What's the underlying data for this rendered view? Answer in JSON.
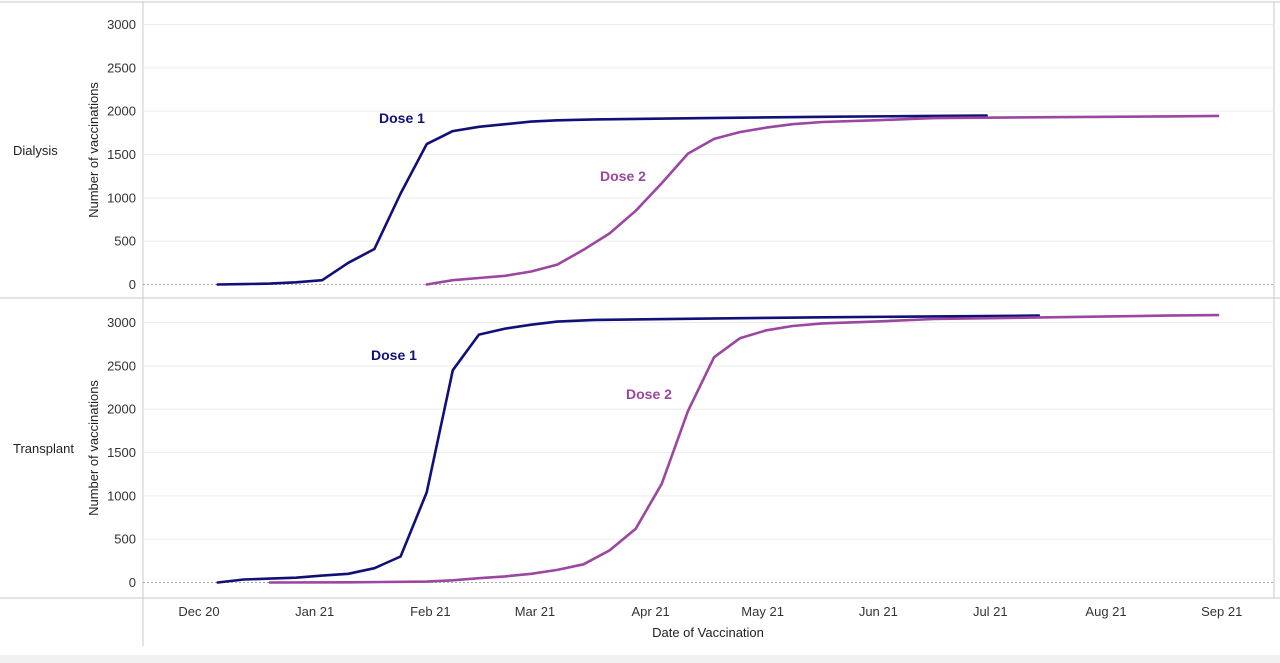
{
  "colors": {
    "dose1": "#101078",
    "dose2": "#9b46a0",
    "panel_border": "#c8c8c8",
    "grid": "#ececec",
    "zero_line": "#a8a8a8",
    "footer": "#f0f0f0"
  },
  "chart_data": {
    "type": "line",
    "xlabel": "Date of Vaccination",
    "x_ticks": [
      "Dec 20",
      "Jan 21",
      "Feb 21",
      "Mar 21",
      "Apr 21",
      "May 21",
      "Jun 21",
      "Jul 21",
      "Aug 21",
      "Sep 21"
    ],
    "x_range": [
      "2020-12-01",
      "2021-09-30"
    ],
    "grid": "horizontal",
    "panels": [
      {
        "row_label": "Dialysis",
        "ylabel": "Number of vaccinations",
        "ylim": [
          0,
          3000
        ],
        "y_ticks": [
          0,
          500,
          1000,
          1500,
          2000,
          2500,
          3000
        ],
        "series": [
          {
            "name": "Dose 1",
            "color": "#101078",
            "points": [
              [
                "2020-12-21",
                0
              ],
              [
                "2020-12-28",
                5
              ],
              [
                "2021-01-04",
                10
              ],
              [
                "2021-01-11",
                25
              ],
              [
                "2021-01-18",
                50
              ],
              [
                "2021-01-25",
                250
              ],
              [
                "2021-02-01",
                410
              ],
              [
                "2021-02-08",
                1050
              ],
              [
                "2021-02-15",
                1620
              ],
              [
                "2021-02-22",
                1770
              ],
              [
                "2021-03-01",
                1820
              ],
              [
                "2021-03-08",
                1850
              ],
              [
                "2021-03-15",
                1880
              ],
              [
                "2021-03-22",
                1895
              ],
              [
                "2021-04-01",
                1905
              ],
              [
                "2021-05-01",
                1920
              ],
              [
                "2021-06-01",
                1935
              ],
              [
                "2021-07-01",
                1945
              ],
              [
                "2021-07-15",
                1950
              ]
            ],
            "label": "Dose 1"
          },
          {
            "name": "Dose 2",
            "color": "#9b46a0",
            "points": [
              [
                "2021-02-15",
                0
              ],
              [
                "2021-02-22",
                50
              ],
              [
                "2021-03-01",
                75
              ],
              [
                "2021-03-08",
                100
              ],
              [
                "2021-03-15",
                150
              ],
              [
                "2021-03-22",
                230
              ],
              [
                "2021-03-29",
                400
              ],
              [
                "2021-04-05",
                590
              ],
              [
                "2021-04-12",
                850
              ],
              [
                "2021-04-19",
                1170
              ],
              [
                "2021-04-26",
                1510
              ],
              [
                "2021-05-03",
                1680
              ],
              [
                "2021-05-10",
                1760
              ],
              [
                "2021-05-17",
                1810
              ],
              [
                "2021-05-24",
                1850
              ],
              [
                "2021-06-01",
                1875
              ],
              [
                "2021-06-15",
                1895
              ],
              [
                "2021-07-01",
                1920
              ],
              [
                "2021-08-01",
                1930
              ],
              [
                "2021-09-01",
                1940
              ],
              [
                "2021-09-15",
                1945
              ]
            ],
            "label": "Dose 2"
          }
        ]
      },
      {
        "row_label": "Transplant",
        "ylabel": "Number of vaccinations",
        "ylim": [
          0,
          3000
        ],
        "y_ticks": [
          0,
          500,
          1000,
          1500,
          2000,
          2500,
          3000
        ],
        "series": [
          {
            "name": "Dose 1",
            "color": "#101078",
            "points": [
              [
                "2020-12-21",
                0
              ],
              [
                "2020-12-28",
                35
              ],
              [
                "2021-01-04",
                45
              ],
              [
                "2021-01-11",
                55
              ],
              [
                "2021-01-18",
                80
              ],
              [
                "2021-01-25",
                100
              ],
              [
                "2021-02-01",
                165
              ],
              [
                "2021-02-08",
                300
              ],
              [
                "2021-02-15",
                1040
              ],
              [
                "2021-02-22",
                2450
              ],
              [
                "2021-03-01",
                2860
              ],
              [
                "2021-03-08",
                2930
              ],
              [
                "2021-03-15",
                2975
              ],
              [
                "2021-03-22",
                3010
              ],
              [
                "2021-04-01",
                3030
              ],
              [
                "2021-05-01",
                3045
              ],
              [
                "2021-06-01",
                3060
              ],
              [
                "2021-07-01",
                3070
              ],
              [
                "2021-07-29",
                3080
              ]
            ],
            "label": "Dose 1"
          },
          {
            "name": "Dose 2",
            "color": "#9b46a0",
            "points": [
              [
                "2021-01-04",
                0
              ],
              [
                "2021-01-25",
                2
              ],
              [
                "2021-02-15",
                10
              ],
              [
                "2021-02-22",
                25
              ],
              [
                "2021-03-01",
                50
              ],
              [
                "2021-03-08",
                70
              ],
              [
                "2021-03-15",
                100
              ],
              [
                "2021-03-22",
                145
              ],
              [
                "2021-03-29",
                210
              ],
              [
                "2021-04-05",
                370
              ],
              [
                "2021-04-12",
                620
              ],
              [
                "2021-04-19",
                1140
              ],
              [
                "2021-04-26",
                1980
              ],
              [
                "2021-05-03",
                2600
              ],
              [
                "2021-05-10",
                2820
              ],
              [
                "2021-05-17",
                2910
              ],
              [
                "2021-05-24",
                2960
              ],
              [
                "2021-06-01",
                2990
              ],
              [
                "2021-06-15",
                3010
              ],
              [
                "2021-07-01",
                3040
              ],
              [
                "2021-08-01",
                3060
              ],
              [
                "2021-09-01",
                3080
              ],
              [
                "2021-09-15",
                3085
              ]
            ],
            "label": "Dose 2"
          }
        ]
      }
    ]
  }
}
